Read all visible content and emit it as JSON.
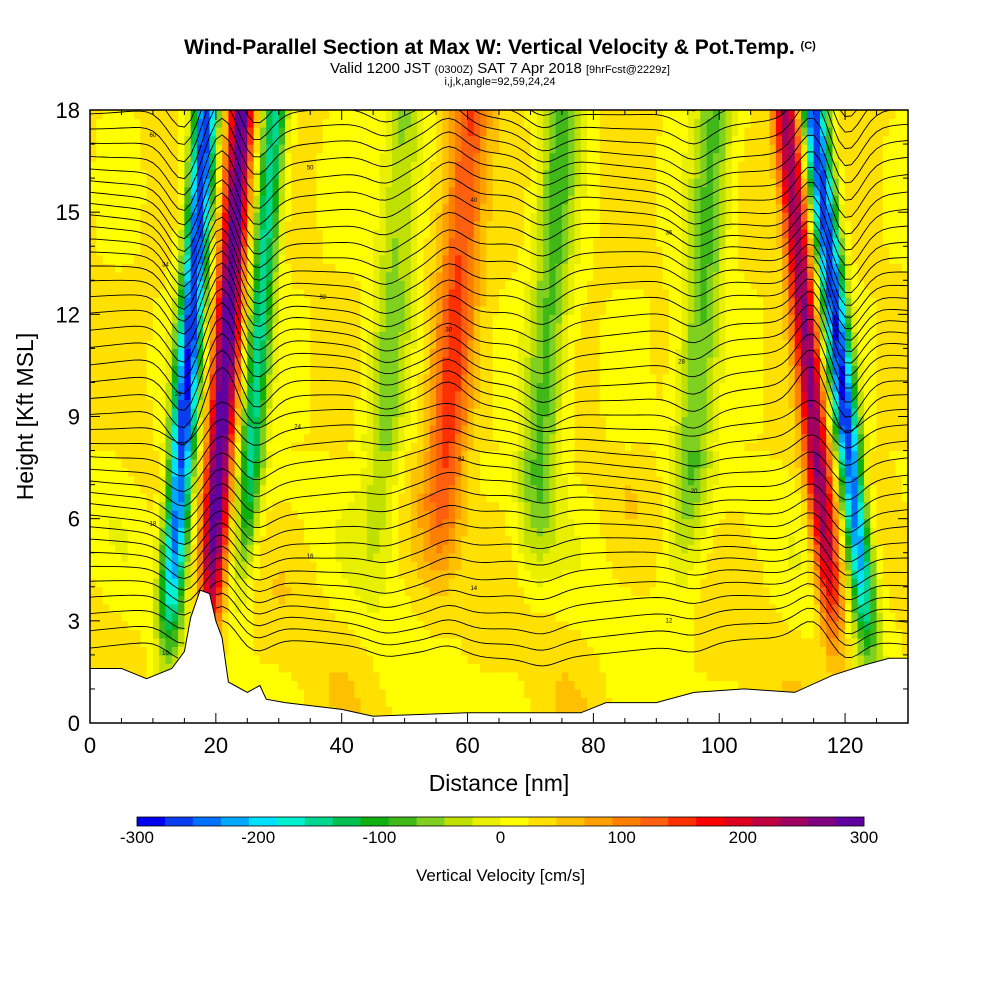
{
  "title": {
    "main": "Wind-Parallel Section at Max W: Vertical Velocity & Pot.Temp.",
    "copyright": "(C)",
    "valid_prefix": "Valid 1200 JST",
    "valid_utc": "(0300Z)",
    "valid_date": "SAT 7 Apr 2018",
    "forecast": "[9hrFcst@2229z]",
    "indices": "i,j,k,angle=92,59,24,24"
  },
  "chart_data": {
    "type": "heatmap",
    "xlabel": "Distance [nm]",
    "ylabel": "Height [Kft MSL]",
    "xlim": [
      0,
      130
    ],
    "ylim": [
      0,
      18
    ],
    "x_ticks": [
      "0",
      "20",
      "40",
      "60",
      "80",
      "100",
      "120"
    ],
    "y_ticks": [
      "0",
      "3",
      "6",
      "9",
      "12",
      "15",
      "18"
    ],
    "colorbar": {
      "label": "Vertical Velocity [cm/s]",
      "min": -300,
      "max": 300,
      "tick_labels": [
        "-300",
        "-200",
        "-100",
        "0",
        "100",
        "200",
        "300"
      ],
      "colors": [
        "#0000f0",
        "#0a3cf0",
        "#0070ff",
        "#00a8ff",
        "#00e0ff",
        "#00f0d0",
        "#00d890",
        "#00c050",
        "#10b010",
        "#40b818",
        "#80d020",
        "#c0e000",
        "#e8f000",
        "#ffff00",
        "#ffe000",
        "#ffc000",
        "#ffa000",
        "#ff8000",
        "#ff6010",
        "#ff3000",
        "#ff0000",
        "#e00020",
        "#c00040",
        "#a00060",
        "#800080",
        "#6000a0"
      ]
    },
    "updrafts": [
      {
        "x": 15,
        "w": -300
      },
      {
        "x": 21,
        "w": 280
      },
      {
        "x": 26,
        "w": -180
      },
      {
        "x": 47,
        "w": -80
      },
      {
        "x": 57,
        "w": 120
      },
      {
        "x": 72,
        "w": -100
      },
      {
        "x": 96,
        "w": -100
      },
      {
        "x": 115,
        "w": 230
      },
      {
        "x": 120,
        "w": -300
      }
    ],
    "terrain_kft": [
      [
        0,
        1.6
      ],
      [
        5,
        1.6
      ],
      [
        9,
        1.3
      ],
      [
        13,
        1.6
      ],
      [
        15,
        2.1
      ],
      [
        16,
        3.1
      ],
      [
        17.5,
        3.9
      ],
      [
        19,
        3.8
      ],
      [
        20,
        3.0
      ],
      [
        21,
        2.5
      ],
      [
        22,
        1.2
      ],
      [
        23,
        1.1
      ],
      [
        25,
        0.9
      ],
      [
        27,
        1.1
      ],
      [
        28,
        0.7
      ],
      [
        31,
        0.6
      ],
      [
        40,
        0.4
      ],
      [
        45,
        0.2
      ],
      [
        60,
        0.3
      ],
      [
        78,
        0.3
      ],
      [
        82,
        0.6
      ],
      [
        90,
        0.6
      ],
      [
        96,
        0.9
      ],
      [
        104,
        1.0
      ],
      [
        112,
        0.9
      ],
      [
        118,
        1.4
      ],
      [
        123,
        1.7
      ],
      [
        127,
        1.9
      ],
      [
        130,
        1.9
      ]
    ],
    "theta_labels": [
      "60",
      "50",
      "40",
      "36",
      "34",
      "32",
      "30",
      "28",
      "26",
      "24",
      "22",
      "20",
      "18",
      "16",
      "14",
      "12",
      "10"
    ]
  }
}
